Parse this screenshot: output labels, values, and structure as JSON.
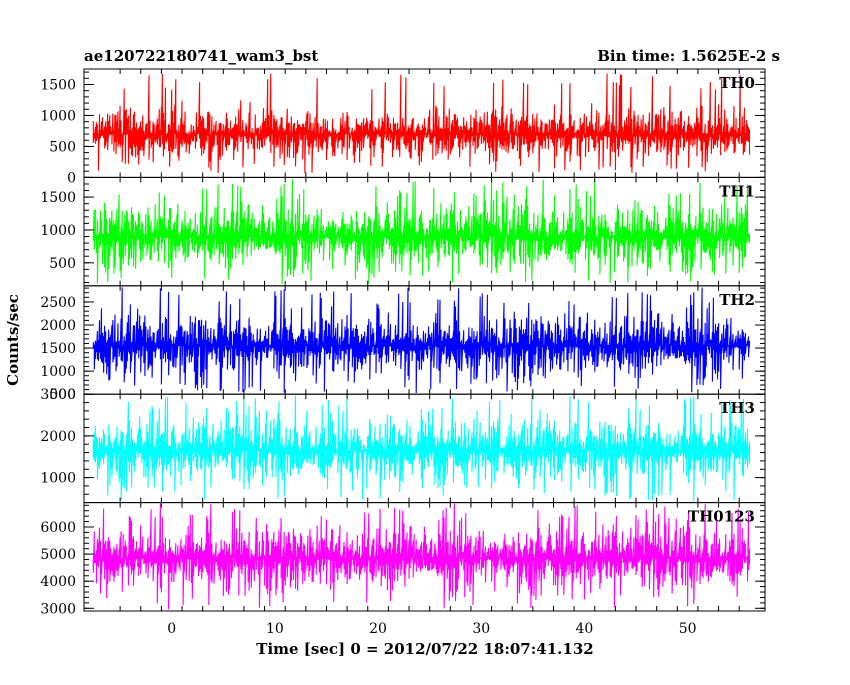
{
  "header": {
    "title": "ae120722180741_wam3_bst",
    "bin_time": "Bin time: 1.5625E-2 s"
  },
  "chart_data": {
    "type": "line",
    "xlabel": "Time [sec] 0 = 2012/07/22 18:07:41.132",
    "ylabel": "Counts/sec",
    "xlim": [
      -8.5,
      57.5
    ],
    "x_data_range": [
      -7.6,
      56.1
    ],
    "x_ticks": [
      0,
      10,
      20,
      30,
      40,
      50
    ],
    "x_tick_labels": [
      "0",
      "10",
      "20",
      "30",
      "40",
      "50"
    ],
    "bin_time": 0.015625,
    "panels": [
      {
        "name": "TH0",
        "color": "#ff0000",
        "ylim": [
          0,
          1750
        ],
        "y_ticks": [
          0,
          500,
          1000,
          1500
        ],
        "y_tick_labels": [
          "0",
          "500",
          "1000",
          "1500"
        ],
        "mean": 700,
        "noise_sd": 190,
        "spike_max": 1680,
        "spike_min": 60
      },
      {
        "name": "TH1",
        "color": "#00ff00",
        "ylim": [
          150,
          1800
        ],
        "y_ticks": [
          500,
          1000,
          1500
        ],
        "y_tick_labels": [
          "500",
          "1000",
          "1500"
        ],
        "mean": 900,
        "noise_sd": 230,
        "spike_max": 1780,
        "spike_min": 160
      },
      {
        "name": "TH2",
        "color": "#0000ff",
        "ylim": [
          500,
          2850
        ],
        "y_ticks": [
          500,
          1000,
          1500,
          2000,
          2500
        ],
        "y_tick_labels": [
          "500",
          "1000",
          "1500",
          "2000",
          "2500"
        ],
        "mean": 1550,
        "noise_sd": 330,
        "spike_max": 2820,
        "spike_min": 520
      },
      {
        "name": "TH3",
        "color": "#00ffff",
        "ylim": [
          400,
          3000
        ],
        "y_ticks": [
          1000,
          2000,
          3000
        ],
        "y_tick_labels": [
          "1000",
          "2000",
          "3000"
        ],
        "mean": 1650,
        "noise_sd": 360,
        "spike_max": 2990,
        "spike_min": 420
      },
      {
        "name": "TH0123",
        "color": "#ff00ff",
        "ylim": [
          2900,
          6900
        ],
        "y_ticks": [
          3000,
          4000,
          5000,
          6000
        ],
        "y_tick_labels": [
          "3000",
          "4000",
          "5000",
          "6000"
        ],
        "mean": 4850,
        "noise_sd": 560,
        "spike_max": 6880,
        "spike_min": 2950
      }
    ]
  }
}
